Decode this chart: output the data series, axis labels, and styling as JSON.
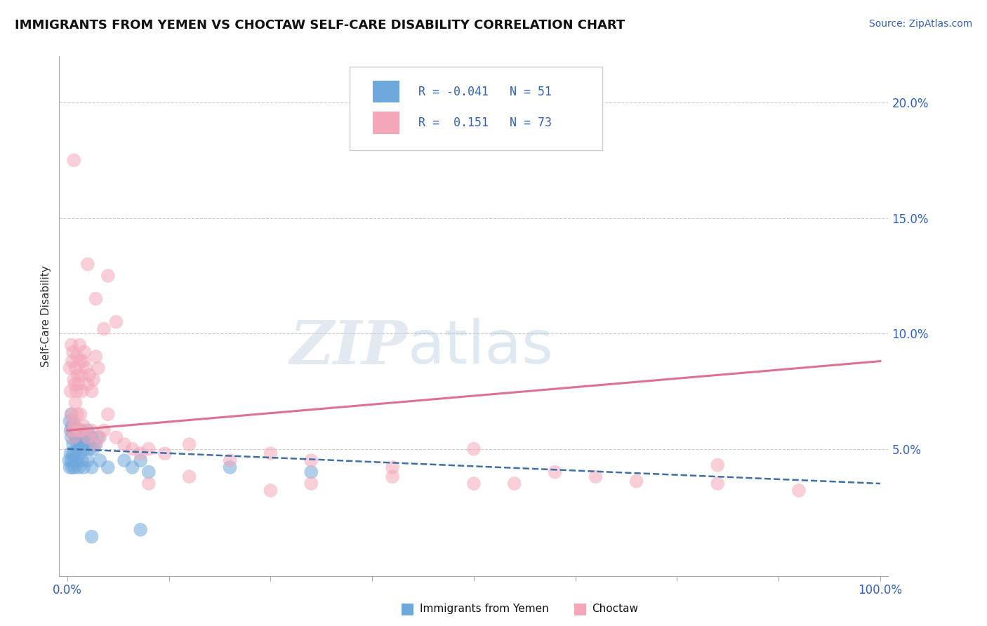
{
  "title": "IMMIGRANTS FROM YEMEN VS CHOCTAW SELF-CARE DISABILITY CORRELATION CHART",
  "source": "Source: ZipAtlas.com",
  "ylabel": "Self-Care Disability",
  "color_blue": "#6fa8dc",
  "color_pink": "#f4a7b9",
  "line_blue_color": "#3d6fa8",
  "line_pink_color": "#e07090",
  "watermark_zip": "ZIP",
  "watermark_atlas": "atlas",
  "blue_pts": [
    [
      0.3,
      6.2
    ],
    [
      0.4,
      5.8
    ],
    [
      0.5,
      6.5
    ],
    [
      0.5,
      5.5
    ],
    [
      0.6,
      6.0
    ],
    [
      0.7,
      5.2
    ],
    [
      0.8,
      6.1
    ],
    [
      0.9,
      5.6
    ],
    [
      1.0,
      5.8
    ],
    [
      1.1,
      5.5
    ],
    [
      1.2,
      5.2
    ],
    [
      1.3,
      5.0
    ],
    [
      1.5,
      5.3
    ],
    [
      1.6,
      5.8
    ],
    [
      1.7,
      5.5
    ],
    [
      1.8,
      5.2
    ],
    [
      2.0,
      5.0
    ],
    [
      2.1,
      5.5
    ],
    [
      2.3,
      5.2
    ],
    [
      2.5,
      5.8
    ],
    [
      2.7,
      5.0
    ],
    [
      3.0,
      5.5
    ],
    [
      3.2,
      5.0
    ],
    [
      3.5,
      5.2
    ],
    [
      3.8,
      5.5
    ],
    [
      0.2,
      4.5
    ],
    [
      0.3,
      4.2
    ],
    [
      0.4,
      4.8
    ],
    [
      0.5,
      4.5
    ],
    [
      0.6,
      4.2
    ],
    [
      0.7,
      4.8
    ],
    [
      0.8,
      4.5
    ],
    [
      0.9,
      4.2
    ],
    [
      1.0,
      4.8
    ],
    [
      1.2,
      4.5
    ],
    [
      1.4,
      4.2
    ],
    [
      1.6,
      4.8
    ],
    [
      1.8,
      4.5
    ],
    [
      2.0,
      4.2
    ],
    [
      2.5,
      4.5
    ],
    [
      3.0,
      4.2
    ],
    [
      4.0,
      4.5
    ],
    [
      5.0,
      4.2
    ],
    [
      7.0,
      4.5
    ],
    [
      8.0,
      4.2
    ],
    [
      9.0,
      4.5
    ],
    [
      10.0,
      4.0
    ],
    [
      20.0,
      4.2
    ],
    [
      30.0,
      4.0
    ],
    [
      3.0,
      1.2
    ],
    [
      9.0,
      1.5
    ]
  ],
  "pink_pts": [
    [
      0.3,
      8.5
    ],
    [
      0.4,
      7.5
    ],
    [
      0.5,
      9.5
    ],
    [
      0.6,
      8.8
    ],
    [
      0.7,
      9.2
    ],
    [
      0.8,
      8.0
    ],
    [
      0.9,
      7.8
    ],
    [
      1.0,
      8.5
    ],
    [
      1.1,
      7.5
    ],
    [
      1.2,
      9.0
    ],
    [
      1.3,
      8.2
    ],
    [
      1.4,
      7.8
    ],
    [
      1.5,
      9.5
    ],
    [
      1.6,
      8.8
    ],
    [
      1.7,
      8.2
    ],
    [
      1.8,
      7.5
    ],
    [
      2.0,
      8.8
    ],
    [
      2.1,
      9.2
    ],
    [
      2.3,
      8.5
    ],
    [
      2.5,
      7.8
    ],
    [
      2.7,
      8.2
    ],
    [
      3.0,
      7.5
    ],
    [
      3.2,
      8.0
    ],
    [
      3.5,
      9.0
    ],
    [
      3.8,
      8.5
    ],
    [
      0.5,
      6.5
    ],
    [
      0.6,
      5.8
    ],
    [
      0.7,
      6.2
    ],
    [
      0.8,
      5.5
    ],
    [
      0.9,
      6.0
    ],
    [
      1.0,
      7.0
    ],
    [
      1.2,
      6.5
    ],
    [
      1.4,
      5.8
    ],
    [
      1.6,
      6.5
    ],
    [
      1.8,
      5.8
    ],
    [
      2.0,
      6.0
    ],
    [
      2.5,
      5.5
    ],
    [
      3.0,
      5.8
    ],
    [
      3.5,
      5.2
    ],
    [
      4.0,
      5.5
    ],
    [
      4.5,
      5.8
    ],
    [
      5.0,
      6.5
    ],
    [
      6.0,
      5.5
    ],
    [
      7.0,
      5.2
    ],
    [
      8.0,
      5.0
    ],
    [
      9.0,
      4.8
    ],
    [
      10.0,
      5.0
    ],
    [
      12.0,
      4.8
    ],
    [
      15.0,
      5.2
    ],
    [
      20.0,
      4.5
    ],
    [
      25.0,
      4.8
    ],
    [
      30.0,
      4.5
    ],
    [
      40.0,
      4.2
    ],
    [
      50.0,
      5.0
    ],
    [
      0.8,
      17.5
    ],
    [
      2.5,
      13.0
    ],
    [
      3.5,
      11.5
    ],
    [
      4.5,
      10.2
    ],
    [
      5.0,
      12.5
    ],
    [
      6.0,
      10.5
    ],
    [
      60.0,
      4.0
    ],
    [
      70.0,
      3.6
    ],
    [
      80.0,
      4.3
    ],
    [
      90.0,
      3.2
    ],
    [
      50.0,
      3.5
    ],
    [
      65.0,
      3.8
    ],
    [
      80.0,
      3.5
    ],
    [
      25.0,
      3.2
    ],
    [
      15.0,
      3.8
    ],
    [
      30.0,
      3.5
    ],
    [
      40.0,
      3.8
    ],
    [
      55.0,
      3.5
    ],
    [
      10.0,
      3.5
    ]
  ],
  "blue_line": {
    "x0": 0.0,
    "x1": 100.0,
    "y0": 5.0,
    "y1": 3.5
  },
  "pink_line": {
    "x0": 0.0,
    "x1": 100.0,
    "y0": 5.8,
    "y1": 8.8
  },
  "xlim": [
    -1.0,
    101.0
  ],
  "ylim": [
    -0.5,
    22.0
  ],
  "yticks": [
    0.0,
    5.0,
    10.0,
    15.0,
    20.0
  ],
  "ytick_labels": [
    "",
    "5.0%",
    "10.0%",
    "15.0%",
    "20.0%"
  ]
}
